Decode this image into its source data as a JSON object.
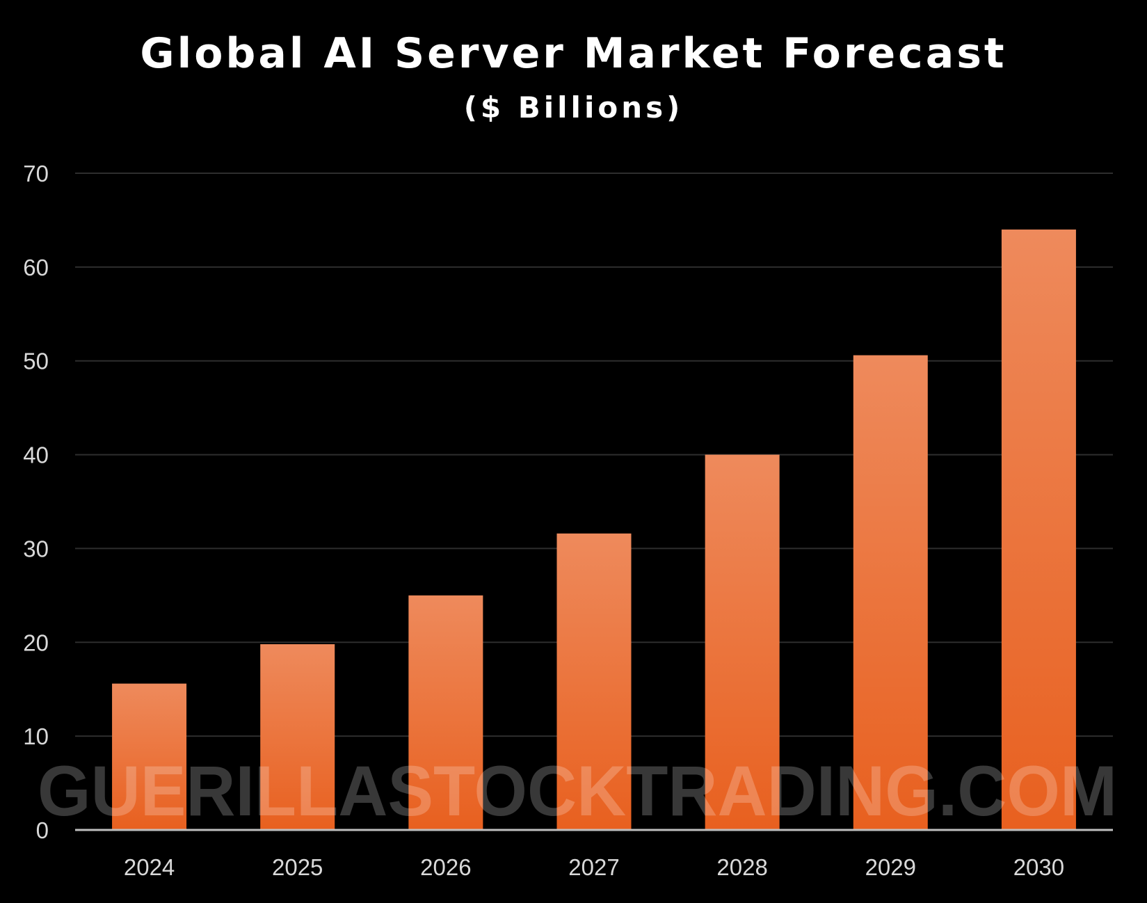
{
  "chart_data": {
    "type": "bar",
    "title": "Global AI Server Market Forecast",
    "subtitle": "($ Billions)",
    "categories": [
      "2024",
      "2025",
      "2026",
      "2027",
      "2028",
      "2029",
      "2030"
    ],
    "values": [
      15.6,
      19.8,
      25.0,
      31.6,
      40.0,
      50.6,
      64.0
    ],
    "xlabel": "",
    "ylabel": "",
    "ylim": [
      0,
      70
    ],
    "yticks": [
      0,
      10,
      20,
      30,
      40,
      50,
      60,
      70
    ],
    "grid": true,
    "legend": "none"
  },
  "watermark": "GUERILLASTOCKTRADING.COM",
  "colors": {
    "background": "#000000",
    "bar_top": "#ee8a5c",
    "bar_bottom": "#e8601f",
    "grid": "#2e2e2e",
    "axis": "#bfbfbf",
    "text": "#ffffff",
    "tick_text": "#d9d9d9"
  }
}
